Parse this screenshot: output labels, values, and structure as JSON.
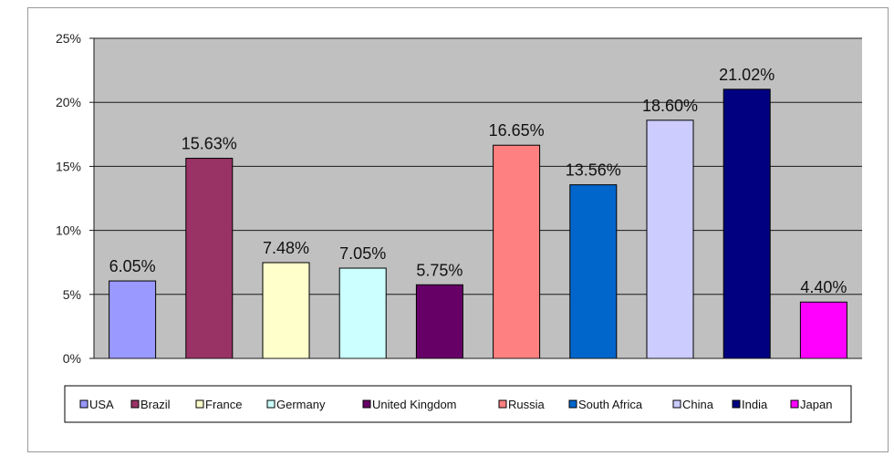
{
  "chart_data": {
    "type": "bar",
    "title": "",
    "xlabel": "",
    "ylabel": "",
    "categories": [
      "USA",
      "Brazil",
      "France",
      "Germany",
      "United Kingdom",
      "Russia",
      "South Africa",
      "China",
      "India",
      "Japan"
    ],
    "values": [
      6.05,
      15.63,
      7.48,
      7.05,
      5.75,
      16.65,
      13.56,
      18.6,
      21.02,
      4.4
    ],
    "value_labels": [
      "6.05%",
      "15.63%",
      "7.48%",
      "7.05%",
      "5.75%",
      "16.65%",
      "13.56%",
      "18.60%",
      "21.02%",
      "4.40%"
    ],
    "colors": [
      "#9999ff",
      "#993366",
      "#ffffcc",
      "#ccffff",
      "#660066",
      "#ff8080",
      "#0066cc",
      "#ccccff",
      "#000080",
      "#ff00ff"
    ],
    "ylim": [
      0,
      25
    ],
    "yticks": [
      0,
      5,
      10,
      15,
      20,
      25
    ],
    "ytick_labels": [
      "0%",
      "5%",
      "10%",
      "15%",
      "20%",
      "25%"
    ],
    "grid": true,
    "legend_position": "bottom",
    "plot_background": "#c0c0c0"
  }
}
